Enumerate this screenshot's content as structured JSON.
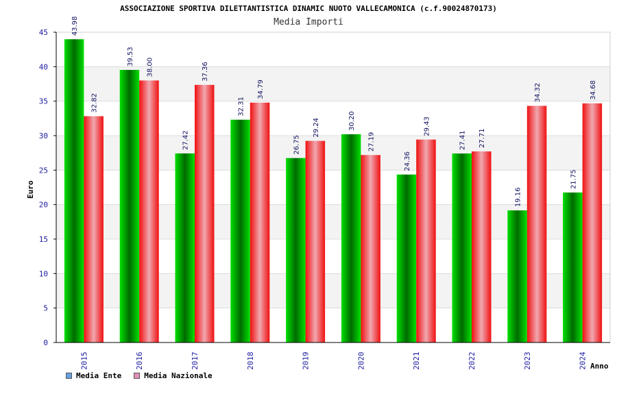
{
  "chart_data": {
    "type": "bar",
    "title": "ASSOCIAZIONE SPORTIVA DILETTANTISTICA DINAMIC NUOTO VALLECAMONICA (c.f.90024870173)",
    "subtitle": "Media Importi",
    "xlabel": "Anno",
    "ylabel": "Euro",
    "categories": [
      "2015",
      "2016",
      "2017",
      "2018",
      "2019",
      "2020",
      "2021",
      "2022",
      "2023",
      "2024"
    ],
    "series": [
      {
        "name": "Media Ente",
        "values": [
          43.98,
          39.53,
          27.42,
          32.31,
          26.75,
          30.2,
          24.36,
          27.41,
          19.16,
          21.75
        ],
        "labels": [
          "43.98",
          "39.53",
          "27.42",
          "32.31",
          "26.75",
          "30.20",
          "24.36",
          "27.41",
          "19.16",
          "21.75"
        ]
      },
      {
        "name": "Media Nazionale",
        "values": [
          32.82,
          38.0,
          37.36,
          34.79,
          29.24,
          27.19,
          29.43,
          27.71,
          34.32,
          34.68
        ],
        "labels": [
          "32.82",
          "38.00",
          "37.36",
          "34.79",
          "29.24",
          "27.19",
          "29.43",
          "27.71",
          "34.32",
          "34.68"
        ]
      }
    ],
    "ylim": [
      0,
      45
    ],
    "yticks": [
      "0",
      "5",
      "10",
      "15",
      "20",
      "25",
      "30",
      "35",
      "40",
      "45"
    ],
    "grid": true,
    "legend_position": "bottom-left",
    "legend_colors": [
      "#6aa0e0",
      "#e090b8"
    ],
    "bar_colors": [
      "#00c000",
      "#f01818"
    ]
  }
}
